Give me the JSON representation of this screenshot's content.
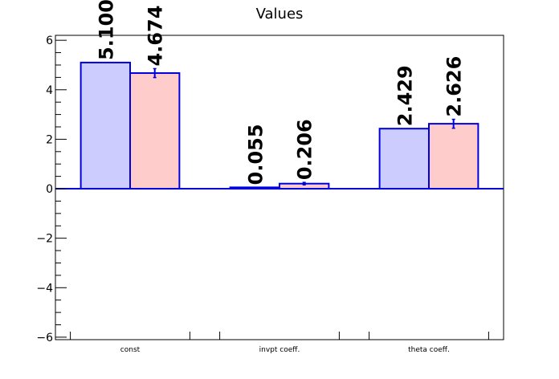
{
  "chart_data": {
    "type": "bar",
    "title": "Values",
    "categories": [
      "const",
      "invpt coeff.",
      "theta coeff."
    ],
    "series": [
      {
        "values": [
          5.1,
          0.055,
          2.429
        ],
        "errors": [
          0.0,
          0.0,
          0.0
        ],
        "fill": "#ccccff",
        "stroke": "#0000dd"
      },
      {
        "values": [
          4.674,
          0.206,
          2.626
        ],
        "errors": [
          0.18,
          0.05,
          0.18
        ],
        "fill": "#ffcccc",
        "stroke": "#0000dd"
      }
    ],
    "data_labels": [
      [
        "5.100",
        "0.055",
        "2.429"
      ],
      [
        "4.674",
        "0.206",
        "2.626"
      ]
    ],
    "ylim": [
      -6.1,
      6.2
    ],
    "yticks": [
      {
        "value": -6,
        "label": "−6"
      },
      {
        "value": -4,
        "label": "−4"
      },
      {
        "value": -2,
        "label": "−2"
      },
      {
        "value": 0,
        "label": "0"
      },
      {
        "value": 2,
        "label": "2"
      },
      {
        "value": 4,
        "label": "4"
      },
      {
        "value": 6,
        "label": "6"
      }
    ],
    "xlabel": "",
    "ylabel": "",
    "grid": false,
    "colors": {
      "axis": "#000000",
      "zero_line": "#0000dd",
      "error_bar": "#0000dd"
    }
  }
}
